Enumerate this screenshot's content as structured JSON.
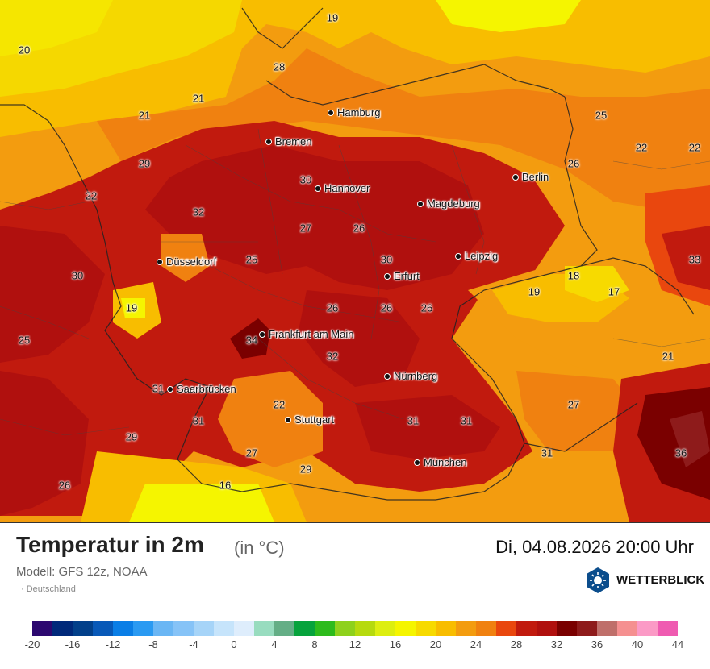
{
  "map": {
    "cities": [
      {
        "name": "Hamburg"
      },
      {
        "name": "Bremen"
      },
      {
        "name": "Berlin"
      },
      {
        "name": "Hannover"
      },
      {
        "name": "Magdeburg"
      },
      {
        "name": "Leipzig"
      },
      {
        "name": "Düsseldorf"
      },
      {
        "name": "Erfurt"
      },
      {
        "name": "Frankfurt am Main"
      },
      {
        "name": "Nürnberg"
      },
      {
        "name": "Saarbrücken"
      },
      {
        "name": "Stuttgart"
      },
      {
        "name": "München"
      }
    ],
    "temperature_labels": [
      "19",
      "20",
      "28",
      "21",
      "21",
      "25",
      "22",
      "22",
      "26",
      "29",
      "30",
      "22",
      "32",
      "27",
      "26",
      "30",
      "25",
      "33",
      "30",
      "18",
      "17",
      "19",
      "19",
      "26",
      "26",
      "26",
      "25",
      "34",
      "32",
      "21",
      "31",
      "22",
      "31",
      "31",
      "31",
      "27",
      "29",
      "31",
      "27",
      "29",
      "36",
      "26",
      "16"
    ]
  },
  "title": "Temperatur in 2m",
  "unit": "(in °C)",
  "datetime": "Di, 04.08.2026 20:00 Uhr",
  "model": "Modell: GFS 12z, NOAA",
  "region": "· Deutschland",
  "brand": {
    "name": "WETTERBLICK",
    "icon": "sun-weather-icon"
  },
  "legend": {
    "colors": [
      "#2c0870",
      "#00297a",
      "#02408a",
      "#0859b8",
      "#0a7ee6",
      "#2a9af2",
      "#6ab6f4",
      "#86c3f7",
      "#a6d4f8",
      "#c6e4fb",
      "#deedfc",
      "#98dcbf",
      "#64ae86",
      "#06a33c",
      "#2dbb1c",
      "#8ed11c",
      "#b6da0e",
      "#ddee10",
      "#f5f500",
      "#f7da00",
      "#f8bd00",
      "#f39c0f",
      "#f08110",
      "#e9470e",
      "#c11a0e",
      "#b0100e",
      "#7a0000",
      "#8e1b1b",
      "#bf6f6a",
      "#f59090",
      "#fb9ac6",
      "#ef5bb1"
    ],
    "ticks": [
      "-20",
      "-16",
      "-12",
      "-8",
      "-4",
      "0",
      "4",
      "8",
      "12",
      "16",
      "20",
      "24",
      "28",
      "32",
      "36",
      "40",
      "44"
    ]
  }
}
